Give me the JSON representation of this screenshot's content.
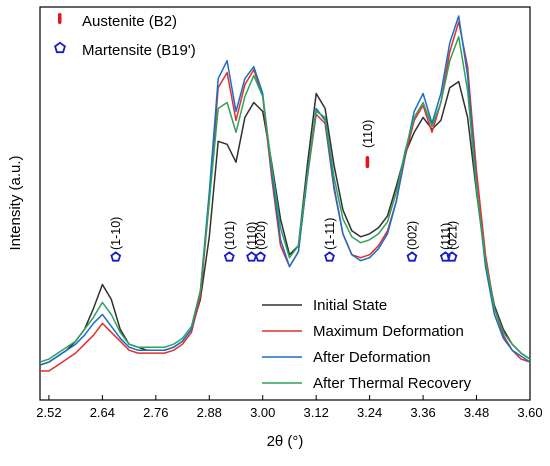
{
  "chart_data": {
    "type": "line",
    "xlabel": "2θ (°)",
    "ylabel": "Intensity (a.u.)",
    "xlim": [
      2.5,
      3.6
    ],
    "xticks": [
      "2.52",
      "2.64",
      "2.76",
      "2.88",
      "3.00",
      "3.12",
      "3.24",
      "3.36",
      "3.48",
      "3.60"
    ],
    "marker_legend": [
      {
        "label": "Austenite (B2)",
        "marker": "bar",
        "color": "#e8141c"
      },
      {
        "label": "Martensite (B19')",
        "marker": "pentagon",
        "color": "#1a1acc"
      }
    ],
    "annotations": [
      {
        "label": "(1-10)",
        "x": 2.67,
        "phase": "martensite"
      },
      {
        "label": "(101)",
        "x": 2.925,
        "phase": "martensite"
      },
      {
        "label": "(110)",
        "x": 2.975,
        "phase": "martensite"
      },
      {
        "label": "(020)",
        "x": 2.995,
        "phase": "martensite"
      },
      {
        "label": "(1-11)",
        "x": 3.15,
        "phase": "martensite"
      },
      {
        "label": "(110)",
        "x": 3.235,
        "phase": "austenite"
      },
      {
        "label": "(002)",
        "x": 3.335,
        "phase": "martensite"
      },
      {
        "label": "(111)",
        "x": 3.41,
        "phase": "martensite"
      },
      {
        "label": "(021)",
        "x": 3.425,
        "phase": "martensite"
      }
    ],
    "legend_position": "bottom-right",
    "series": [
      {
        "name": "Initial State",
        "color": "#303030",
        "x": [
          2.5,
          2.52,
          2.54,
          2.56,
          2.58,
          2.6,
          2.62,
          2.64,
          2.66,
          2.68,
          2.7,
          2.72,
          2.74,
          2.76,
          2.78,
          2.8,
          2.82,
          2.84,
          2.86,
          2.88,
          2.9,
          2.92,
          2.94,
          2.96,
          2.98,
          3.0,
          3.02,
          3.04,
          3.06,
          3.08,
          3.1,
          3.12,
          3.14,
          3.16,
          3.18,
          3.2,
          3.22,
          3.24,
          3.26,
          3.28,
          3.3,
          3.32,
          3.34,
          3.36,
          3.38,
          3.4,
          3.42,
          3.44,
          3.46,
          3.48,
          3.5,
          3.52,
          3.54,
          3.56,
          3.58,
          3.6
        ],
        "y": [
          5,
          6,
          8,
          10,
          13,
          17,
          24,
          32,
          27,
          17,
          12,
          11,
          10,
          10,
          10,
          11,
          13,
          17,
          27,
          48,
          80,
          79,
          73,
          88,
          93,
          90,
          73,
          54,
          42,
          45,
          72,
          96,
          91,
          72,
          57,
          50,
          48,
          49,
          51,
          55,
          65,
          76,
          83,
          88,
          84,
          87,
          98,
          100,
          88,
          63,
          40,
          25,
          17,
          12,
          9,
          7
        ]
      },
      {
        "name": "Maximum Deformation",
        "color": "#e03030",
        "x": [
          2.5,
          2.52,
          2.54,
          2.56,
          2.58,
          2.6,
          2.62,
          2.64,
          2.66,
          2.68,
          2.7,
          2.72,
          2.74,
          2.76,
          2.78,
          2.8,
          2.82,
          2.84,
          2.86,
          2.88,
          2.9,
          2.92,
          2.94,
          2.96,
          2.98,
          3.0,
          3.02,
          3.04,
          3.06,
          3.08,
          3.1,
          3.12,
          3.14,
          3.16,
          3.18,
          3.2,
          3.22,
          3.24,
          3.26,
          3.28,
          3.3,
          3.32,
          3.34,
          3.36,
          3.38,
          3.4,
          3.42,
          3.44,
          3.46,
          3.48,
          3.5,
          3.52,
          3.54,
          3.56,
          3.58,
          3.6
        ],
        "y": [
          3,
          3,
          5,
          7,
          9,
          12,
          15,
          19,
          16,
          13,
          10,
          9,
          9,
          9,
          9,
          10,
          12,
          16,
          28,
          60,
          98,
          103,
          87,
          99,
          104,
          95,
          68,
          45,
          38,
          43,
          68,
          89,
          86,
          64,
          49,
          42,
          41,
          42,
          45,
          50,
          60,
          75,
          87,
          92,
          83,
          93,
          110,
          120,
          105,
          70,
          42,
          24,
          15,
          10,
          7,
          6
        ]
      },
      {
        "name": "After Deformation",
        "color": "#1a6fc4",
        "x": [
          2.5,
          2.52,
          2.54,
          2.56,
          2.58,
          2.6,
          2.62,
          2.64,
          2.66,
          2.68,
          2.7,
          2.72,
          2.74,
          2.76,
          2.78,
          2.8,
          2.82,
          2.84,
          2.86,
          2.88,
          2.9,
          2.92,
          2.94,
          2.96,
          2.98,
          3.0,
          3.02,
          3.04,
          3.06,
          3.08,
          3.1,
          3.12,
          3.14,
          3.16,
          3.18,
          3.2,
          3.22,
          3.24,
          3.26,
          3.28,
          3.3,
          3.32,
          3.34,
          3.36,
          3.38,
          3.4,
          3.42,
          3.44,
          3.46,
          3.48,
          3.5,
          3.52,
          3.54,
          3.56,
          3.58,
          3.6
        ],
        "y": [
          5,
          6,
          8,
          10,
          12,
          15,
          19,
          22,
          18,
          14,
          11,
          10,
          10,
          10,
          10,
          11,
          13,
          17,
          30,
          63,
          101,
          107,
          90,
          101,
          105,
          96,
          70,
          47,
          38,
          43,
          68,
          91,
          87,
          65,
          49,
          42,
          40,
          41,
          44,
          49,
          60,
          76,
          90,
          96,
          86,
          96,
          113,
          122,
          102,
          65,
          38,
          22,
          14,
          10,
          8,
          6
        ]
      },
      {
        "name": "After Thermal Recovery",
        "color": "#2fa15a",
        "x": [
          2.5,
          2.52,
          2.54,
          2.56,
          2.58,
          2.6,
          2.62,
          2.64,
          2.66,
          2.68,
          2.7,
          2.72,
          2.74,
          2.76,
          2.78,
          2.8,
          2.82,
          2.84,
          2.86,
          2.88,
          2.9,
          2.92,
          2.94,
          2.96,
          2.98,
          3.0,
          3.02,
          3.04,
          3.06,
          3.08,
          3.1,
          3.12,
          3.14,
          3.16,
          3.18,
          3.2,
          3.22,
          3.24,
          3.26,
          3.28,
          3.3,
          3.32,
          3.34,
          3.36,
          3.38,
          3.4,
          3.42,
          3.44,
          3.46,
          3.48,
          3.5,
          3.52,
          3.54,
          3.56,
          3.58,
          3.6
        ],
        "y": [
          6,
          7,
          9,
          11,
          13,
          17,
          21,
          26,
          22,
          16,
          12,
          11,
          11,
          11,
          11,
          12,
          14,
          18,
          30,
          60,
          91,
          93,
          83,
          95,
          102,
          95,
          72,
          51,
          41,
          45,
          69,
          90,
          88,
          68,
          54,
          48,
          46,
          47,
          49,
          53,
          63,
          77,
          88,
          93,
          85,
          93,
          107,
          115,
          97,
          64,
          40,
          24,
          16,
          12,
          9,
          7
        ]
      }
    ]
  }
}
